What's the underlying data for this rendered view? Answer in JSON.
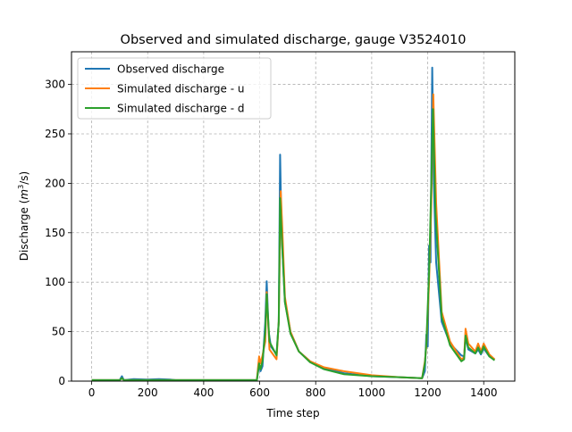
{
  "chart_data": {
    "type": "line",
    "title": "Observed and simulated discharge, gauge V3524010",
    "xlabel": "Time step",
    "ylabel_prefix": "Discharge (",
    "ylabel_unit": "m",
    "ylabel_sup": "3",
    "ylabel_suffix": "/s)",
    "xlim": [
      -72,
      1511
    ],
    "ylim": [
      0,
      333
    ],
    "xticks": [
      0,
      200,
      400,
      600,
      800,
      1000,
      1200,
      1400
    ],
    "yticks": [
      0,
      50,
      100,
      150,
      200,
      250,
      300
    ],
    "grid": true,
    "legend_position": "top-left",
    "series": [
      {
        "name": "Observed discharge",
        "color": "#1f77b4",
        "points": [
          [
            0,
            1
          ],
          [
            100,
            1
          ],
          [
            108,
            5
          ],
          [
            115,
            1
          ],
          [
            150,
            2
          ],
          [
            200,
            1.5
          ],
          [
            240,
            2
          ],
          [
            280,
            1.5
          ],
          [
            300,
            1
          ],
          [
            590,
            1
          ],
          [
            598,
            17
          ],
          [
            603,
            10
          ],
          [
            610,
            15
          ],
          [
            620,
            60
          ],
          [
            625,
            101
          ],
          [
            632,
            50
          ],
          [
            640,
            35
          ],
          [
            660,
            27
          ],
          [
            668,
            60
          ],
          [
            673,
            229
          ],
          [
            678,
            150
          ],
          [
            690,
            80
          ],
          [
            710,
            50
          ],
          [
            740,
            30
          ],
          [
            780,
            20
          ],
          [
            830,
            13
          ],
          [
            900,
            8
          ],
          [
            1000,
            5
          ],
          [
            1100,
            4
          ],
          [
            1180,
            3
          ],
          [
            1190,
            10
          ],
          [
            1195,
            47
          ],
          [
            1200,
            35
          ],
          [
            1205,
            137
          ],
          [
            1210,
            120
          ],
          [
            1216,
            317
          ],
          [
            1222,
            200
          ],
          [
            1230,
            120
          ],
          [
            1250,
            60
          ],
          [
            1280,
            38
          ],
          [
            1320,
            26
          ],
          [
            1330,
            25
          ],
          [
            1335,
            45
          ],
          [
            1345,
            32
          ],
          [
            1370,
            28
          ],
          [
            1380,
            32
          ],
          [
            1390,
            27
          ],
          [
            1400,
            33
          ],
          [
            1420,
            25
          ],
          [
            1439,
            22
          ]
        ]
      },
      {
        "name": "Simulated discharge - u",
        "color": "#ff7f0e",
        "points": [
          [
            0,
            1
          ],
          [
            100,
            1
          ],
          [
            108,
            3
          ],
          [
            115,
            1
          ],
          [
            300,
            1
          ],
          [
            590,
            1
          ],
          [
            598,
            25
          ],
          [
            603,
            18
          ],
          [
            610,
            26
          ],
          [
            620,
            40
          ],
          [
            625,
            90
          ],
          [
            635,
            32
          ],
          [
            660,
            22
          ],
          [
            668,
            60
          ],
          [
            675,
            192
          ],
          [
            680,
            160
          ],
          [
            690,
            85
          ],
          [
            710,
            50
          ],
          [
            740,
            30
          ],
          [
            780,
            20
          ],
          [
            830,
            14
          ],
          [
            900,
            10
          ],
          [
            1000,
            6
          ],
          [
            1100,
            4
          ],
          [
            1180,
            3
          ],
          [
            1190,
            20
          ],
          [
            1195,
            35
          ],
          [
            1205,
            100
          ],
          [
            1213,
            180
          ],
          [
            1220,
            290
          ],
          [
            1230,
            180
          ],
          [
            1250,
            70
          ],
          [
            1280,
            40
          ],
          [
            1320,
            22
          ],
          [
            1330,
            24
          ],
          [
            1335,
            53
          ],
          [
            1345,
            38
          ],
          [
            1370,
            30
          ],
          [
            1380,
            38
          ],
          [
            1390,
            30
          ],
          [
            1400,
            38
          ],
          [
            1420,
            27
          ],
          [
            1439,
            22
          ]
        ]
      },
      {
        "name": "Simulated discharge - d",
        "color": "#2ca02c",
        "points": [
          [
            0,
            1
          ],
          [
            100,
            1
          ],
          [
            108,
            3
          ],
          [
            115,
            1
          ],
          [
            300,
            1
          ],
          [
            590,
            1
          ],
          [
            598,
            18
          ],
          [
            603,
            12
          ],
          [
            610,
            20
          ],
          [
            620,
            50
          ],
          [
            625,
            88
          ],
          [
            635,
            40
          ],
          [
            660,
            26
          ],
          [
            668,
            60
          ],
          [
            673,
            185
          ],
          [
            680,
            140
          ],
          [
            690,
            80
          ],
          [
            710,
            48
          ],
          [
            740,
            30
          ],
          [
            780,
            19
          ],
          [
            830,
            12
          ],
          [
            900,
            7
          ],
          [
            1000,
            5
          ],
          [
            1100,
            4
          ],
          [
            1180,
            3
          ],
          [
            1190,
            18
          ],
          [
            1195,
            38
          ],
          [
            1205,
            110
          ],
          [
            1213,
            200
          ],
          [
            1219,
            275
          ],
          [
            1228,
            170
          ],
          [
            1250,
            65
          ],
          [
            1280,
            36
          ],
          [
            1320,
            20
          ],
          [
            1330,
            22
          ],
          [
            1335,
            46
          ],
          [
            1345,
            34
          ],
          [
            1370,
            28
          ],
          [
            1380,
            34
          ],
          [
            1390,
            28
          ],
          [
            1400,
            35
          ],
          [
            1420,
            25
          ],
          [
            1439,
            21
          ]
        ]
      }
    ]
  }
}
